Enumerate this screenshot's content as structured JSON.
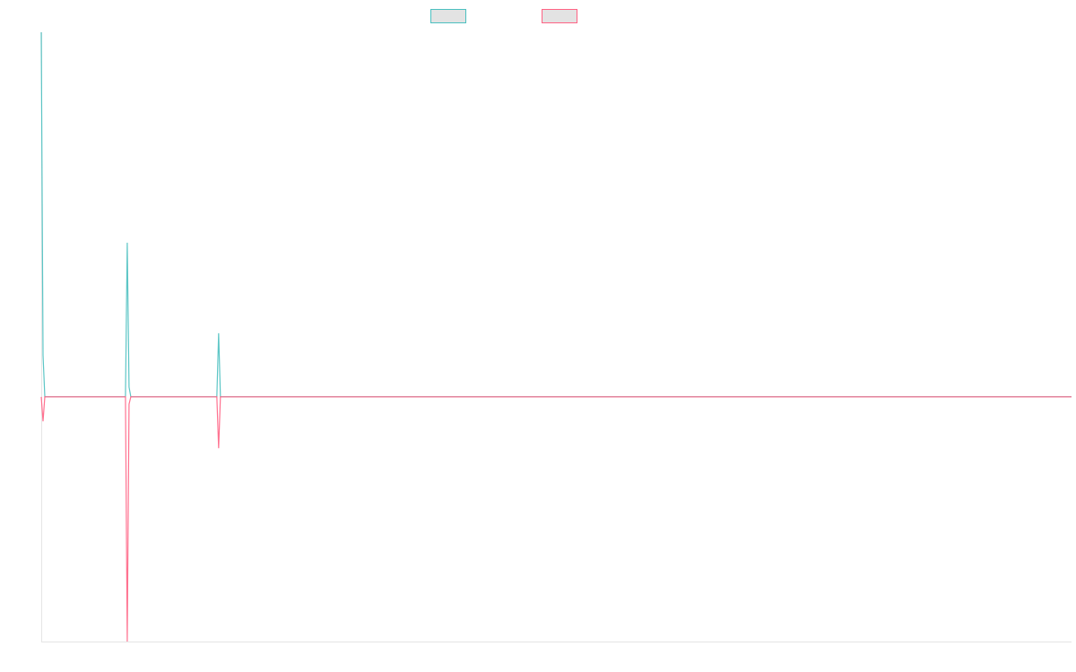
{
  "chart_data": {
    "type": "line",
    "title": "",
    "xlabel": "",
    "ylabel": "",
    "xlim": [
      0,
      575
    ],
    "ylim": [
      -1,
      1.49
    ],
    "grid": false,
    "legend_placement": "top-center",
    "x": [
      0,
      1,
      2,
      47,
      48,
      49,
      50,
      98,
      99,
      100,
      575
    ],
    "series": [
      {
        "color": "#4bc0c0",
        "values": [
          1.49,
          0.17,
          0,
          0,
          0.63,
          0.04,
          0,
          0,
          0.26,
          0,
          0
        ]
      },
      {
        "color": "#ff6384",
        "values": [
          0,
          -0.1,
          0,
          0,
          -1,
          -0.03,
          0,
          0,
          -0.21,
          0,
          0
        ]
      }
    ]
  }
}
